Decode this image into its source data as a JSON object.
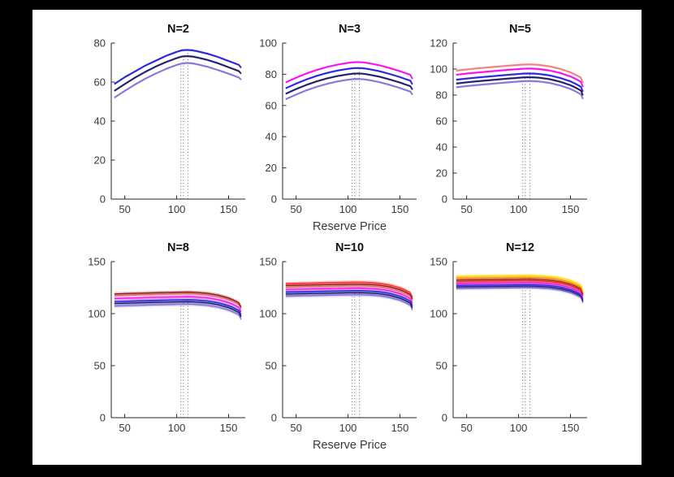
{
  "figure": {
    "background": "#000000",
    "canvas_background": "#ffffff",
    "axis_color": "#262626",
    "tick_label_color": "#3a3a3a",
    "title_color": "#111111",
    "vline_color": "#4a4a4a"
  },
  "chart_data": [
    {
      "type": "line",
      "title": "N=2",
      "xlabel": "",
      "ylabel": "",
      "xlim": [
        37,
        166
      ],
      "ylim": [
        0,
        80
      ],
      "xticks": [
        50,
        100,
        150
      ],
      "yticks": [
        0,
        20,
        40,
        60,
        80
      ],
      "grid": false,
      "legend": "none",
      "band_halfwidth": 0.6,
      "x": [
        40,
        50,
        60,
        70,
        80,
        90,
        100,
        105,
        110,
        115,
        120,
        130,
        140,
        150,
        155,
        160,
        162
      ],
      "vlines": [
        {
          "x": 104,
          "top": 69.8
        },
        {
          "x": 106.5,
          "top": 73.3
        },
        {
          "x": 111,
          "top": 76.5
        }
      ],
      "series": [
        {
          "name": "purple",
          "color": "#8673d9",
          "values": [
            52,
            55.5,
            58.8,
            61.8,
            64.4,
            66.8,
            68.8,
            69.5,
            69.8,
            69.6,
            69.1,
            67.8,
            66.1,
            64.3,
            63.3,
            62.3,
            61.2
          ]
        },
        {
          "name": "navy",
          "color": "#1c1c66",
          "values": [
            55.5,
            59,
            62.3,
            65.3,
            68,
            70.3,
            72.3,
            73.1,
            73.3,
            73.1,
            72.6,
            71.3,
            69.6,
            67.6,
            66.6,
            65.6,
            64.3
          ]
        },
        {
          "name": "blue",
          "color": "#2424dd",
          "values": [
            59,
            62.5,
            65.5,
            68.5,
            71,
            73.5,
            75.5,
            76.3,
            76.5,
            76.3,
            75.8,
            74.5,
            72.8,
            70.8,
            69.8,
            68.8,
            67.3
          ]
        }
      ]
    },
    {
      "type": "line",
      "title": "N=3",
      "xlabel": "Reserve Price",
      "ylabel": "",
      "xlim": [
        37,
        166
      ],
      "ylim": [
        0,
        100
      ],
      "xticks": [
        50,
        100,
        150
      ],
      "yticks": [
        0,
        20,
        40,
        60,
        80,
        100
      ],
      "grid": false,
      "legend": "none",
      "band_halfwidth": 0.7,
      "x": [
        40,
        50,
        60,
        70,
        80,
        90,
        100,
        105,
        110,
        115,
        120,
        130,
        140,
        150,
        155,
        160,
        162
      ],
      "vlines": [
        {
          "x": 104,
          "top": 77
        },
        {
          "x": 106.5,
          "top": 80.5
        },
        {
          "x": 111,
          "top": 84
        }
      ],
      "series": [
        {
          "name": "purple",
          "color": "#8673d9",
          "values": [
            64,
            67,
            69.7,
            72,
            73.9,
            75.4,
            76.5,
            76.9,
            77,
            76.8,
            76.3,
            75,
            73.2,
            71.2,
            70,
            68.9,
            66.9
          ]
        },
        {
          "name": "navy",
          "color": "#1c1c66",
          "values": [
            67.5,
            70.5,
            73.2,
            75.5,
            77.4,
            78.9,
            80,
            80.4,
            80.5,
            80.3,
            79.8,
            78.5,
            76.7,
            74.7,
            73.5,
            72.4,
            70.2
          ]
        },
        {
          "name": "blue",
          "color": "#2424dd",
          "values": [
            71,
            74,
            76.7,
            79,
            80.9,
            82.4,
            83.5,
            83.9,
            84,
            83.8,
            83.3,
            82,
            80.2,
            78.2,
            77,
            75.9,
            73.5
          ]
        },
        {
          "name": "magenta",
          "color": "#fb0cf0",
          "values": [
            74.8,
            77.8,
            80.5,
            82.8,
            84.7,
            86.2,
            87.3,
            87.7,
            87.8,
            87.6,
            87.1,
            85.8,
            84,
            82,
            80.8,
            79.7,
            77
          ]
        }
      ]
    },
    {
      "type": "line",
      "title": "N=5",
      "xlabel": "",
      "ylabel": "",
      "xlim": [
        37,
        166
      ],
      "ylim": [
        0,
        120
      ],
      "xticks": [
        50,
        100,
        150
      ],
      "yticks": [
        0,
        20,
        40,
        60,
        80,
        100,
        120
      ],
      "grid": false,
      "legend": "none",
      "band_halfwidth": 0.9,
      "x": [
        40,
        50,
        60,
        70,
        80,
        90,
        100,
        105,
        110,
        115,
        120,
        130,
        140,
        150,
        155,
        160,
        162
      ],
      "vlines": [
        {
          "x": 104,
          "top": 90.8
        },
        {
          "x": 106.5,
          "top": 93.7
        },
        {
          "x": 111,
          "top": 96.6
        }
      ],
      "series": [
        {
          "name": "purple",
          "color": "#8673d9",
          "values": [
            86,
            86.9,
            87.7,
            88.4,
            89.1,
            89.8,
            90.4,
            90.7,
            90.8,
            90.7,
            90.4,
            89.3,
            87.4,
            84.7,
            82.8,
            80.6,
            77
          ]
        },
        {
          "name": "navy",
          "color": "#1c1c66",
          "values": [
            88.9,
            89.8,
            90.6,
            91.3,
            92,
            92.7,
            93.3,
            93.6,
            93.7,
            93.6,
            93.3,
            92.2,
            90.3,
            87.6,
            85.7,
            83.5,
            79.8
          ]
        },
        {
          "name": "blue",
          "color": "#2424dd",
          "values": [
            91.8,
            92.7,
            93.5,
            94.2,
            94.9,
            95.6,
            96.2,
            96.5,
            96.6,
            96.5,
            96.2,
            95.1,
            93.2,
            90.5,
            88.6,
            86.4,
            82.6
          ]
        },
        {
          "name": "magenta",
          "color": "#fb0cf0",
          "values": [
            95.6,
            96.5,
            97.3,
            98,
            98.7,
            99.4,
            100,
            100.3,
            100.4,
            100.3,
            100,
            98.9,
            97,
            94.3,
            92.4,
            90.2,
            86.2
          ]
        },
        {
          "name": "salmon",
          "color": "#f08080",
          "values": [
            98.8,
            99.7,
            100.5,
            101.2,
            101.9,
            102.6,
            103.2,
            103.5,
            103.6,
            103.5,
            103.2,
            102.1,
            100.2,
            97.5,
            95.6,
            93.4,
            89.2
          ]
        }
      ]
    },
    {
      "type": "line",
      "title": "N=8",
      "xlabel": "",
      "ylabel": "",
      "xlim": [
        37,
        166
      ],
      "ylim": [
        0,
        150
      ],
      "xticks": [
        50,
        100,
        150
      ],
      "yticks": [
        0,
        50,
        100,
        150
      ],
      "grid": false,
      "legend": "none",
      "band_halfwidth": 1.7,
      "x": [
        40,
        50,
        60,
        70,
        80,
        90,
        100,
        105,
        110,
        115,
        120,
        130,
        140,
        150,
        155,
        160,
        162
      ],
      "vlines": [
        {
          "x": 104,
          "top": 109.1
        },
        {
          "x": 106.5,
          "top": 113.4
        },
        {
          "x": 111,
          "top": 120.7
        }
      ],
      "series": [
        {
          "name": "purple",
          "color": "#8673d9",
          "values": [
            107.3,
            107.6,
            107.9,
            108.2,
            108.5,
            108.7,
            108.9,
            109,
            109.1,
            109,
            108.7,
            107.9,
            106.2,
            103.4,
            101.3,
            98.7,
            94.5
          ]
        },
        {
          "name": "navy",
          "color": "#1c1c66",
          "values": [
            109.7,
            110,
            110.3,
            110.6,
            110.9,
            111.1,
            111.3,
            111.4,
            111.5,
            111.4,
            111.1,
            110.3,
            108.6,
            105.8,
            103.7,
            101.1,
            96.9
          ]
        },
        {
          "name": "blue",
          "color": "#2424dd",
          "values": [
            111.6,
            111.9,
            112.2,
            112.5,
            112.8,
            113,
            113.2,
            113.3,
            113.4,
            113.3,
            113,
            112.2,
            110.5,
            107.7,
            105.6,
            103,
            98.8
          ]
        },
        {
          "name": "magenta",
          "color": "#fb0cf0",
          "values": [
            114.5,
            114.8,
            115.1,
            115.4,
            115.7,
            115.9,
            116.1,
            116.2,
            116.3,
            116.2,
            115.9,
            115.1,
            113.4,
            110.6,
            108.5,
            105.9,
            101.7
          ]
        },
        {
          "name": "salmon",
          "color": "#f08080",
          "values": [
            117.2,
            117.5,
            117.8,
            118.1,
            118.4,
            118.6,
            118.8,
            118.9,
            119,
            118.9,
            118.6,
            117.8,
            116.1,
            113.3,
            111.2,
            108.6,
            104.4
          ]
        },
        {
          "name": "darkred",
          "color": "#8f1515",
          "values": [
            118.9,
            119.2,
            119.5,
            119.8,
            120.1,
            120.3,
            120.5,
            120.6,
            120.7,
            120.6,
            120.3,
            119.5,
            117.8,
            115,
            112.9,
            110.3,
            106.1
          ]
        }
      ]
    },
    {
      "type": "line",
      "title": "N=10",
      "xlabel": "Reserve Price",
      "ylabel": "",
      "xlim": [
        37,
        166
      ],
      "ylim": [
        0,
        150
      ],
      "xticks": [
        50,
        100,
        150
      ],
      "yticks": [
        0,
        50,
        100,
        150
      ],
      "grid": false,
      "legend": "none",
      "band_halfwidth": 1.7,
      "x": [
        40,
        50,
        60,
        70,
        80,
        90,
        100,
        105,
        110,
        115,
        120,
        130,
        140,
        150,
        155,
        160,
        162
      ],
      "vlines": [
        {
          "x": 104,
          "top": 118.1
        },
        {
          "x": 106.5,
          "top": 122.1
        },
        {
          "x": 111,
          "top": 130.2
        }
      ],
      "series": [
        {
          "name": "purple",
          "color": "#8673d9",
          "values": [
            116.8,
            117,
            117.2,
            117.4,
            117.6,
            117.8,
            118,
            118.1,
            118.1,
            118,
            117.8,
            117.1,
            115.5,
            112.8,
            110.7,
            108,
            103.5
          ]
        },
        {
          "name": "navy",
          "color": "#1c1c66",
          "values": [
            118.9,
            119.1,
            119.3,
            119.5,
            119.7,
            119.9,
            120.1,
            120.2,
            120.2,
            120.1,
            119.9,
            119.2,
            117.6,
            114.9,
            112.8,
            110.1,
            105.6
          ]
        },
        {
          "name": "blue",
          "color": "#2424dd",
          "values": [
            120.8,
            121,
            121.2,
            121.4,
            121.6,
            121.8,
            122,
            122.1,
            122.1,
            122,
            121.8,
            121.1,
            119.5,
            116.8,
            114.7,
            112,
            107.5
          ]
        },
        {
          "name": "magenta",
          "color": "#fb0cf0",
          "values": [
            123.3,
            123.5,
            123.7,
            123.9,
            124.1,
            124.3,
            124.5,
            124.6,
            124.6,
            124.5,
            124.3,
            123.6,
            122,
            119.3,
            117.2,
            114.5,
            110
          ]
        },
        {
          "name": "salmon",
          "color": "#f08080",
          "values": [
            125.3,
            125.5,
            125.7,
            125.9,
            126.1,
            126.3,
            126.5,
            126.6,
            126.6,
            126.5,
            126.3,
            125.6,
            124,
            121.3,
            119.2,
            116.5,
            112
          ]
        },
        {
          "name": "darkred",
          "color": "#8f1515",
          "values": [
            127.1,
            127.3,
            127.5,
            127.7,
            127.9,
            128.1,
            128.3,
            128.4,
            128.4,
            128.3,
            128.1,
            127.4,
            125.8,
            123.1,
            121,
            118.3,
            113.8
          ]
        },
        {
          "name": "red",
          "color": "#ff2a2a",
          "values": [
            128.9,
            129.1,
            129.3,
            129.5,
            129.7,
            129.9,
            130.1,
            130.2,
            130.2,
            130.1,
            129.9,
            129.2,
            127.6,
            124.9,
            122.8,
            120.1,
            115.6
          ]
        }
      ]
    },
    {
      "type": "line",
      "title": "N=12",
      "xlabel": "",
      "ylabel": "",
      "xlim": [
        37,
        166
      ],
      "ylim": [
        0,
        150
      ],
      "xticks": [
        50,
        100,
        150
      ],
      "yticks": [
        0,
        50,
        100,
        150
      ],
      "grid": false,
      "legend": "none",
      "band_halfwidth": 1.7,
      "x": [
        40,
        50,
        60,
        70,
        80,
        90,
        100,
        105,
        110,
        115,
        120,
        130,
        140,
        150,
        155,
        160,
        162
      ],
      "vlines": [
        {
          "x": 104,
          "top": 125
        },
        {
          "x": 106.5,
          "top": 128
        },
        {
          "x": 111,
          "top": 136.6
        }
      ],
      "series": [
        {
          "name": "purple",
          "color": "#8673d9",
          "values": [
            124.2,
            124.4,
            124.5,
            124.6,
            124.7,
            124.8,
            124.9,
            125,
            125,
            124.9,
            124.7,
            124.1,
            122.7,
            120.2,
            118.2,
            115.6,
            110.5
          ]
        },
        {
          "name": "navy",
          "color": "#1c1c66",
          "values": [
            125.7,
            125.9,
            126,
            126.1,
            126.2,
            126.3,
            126.4,
            126.5,
            126.5,
            126.4,
            126.2,
            125.6,
            124.2,
            121.7,
            119.7,
            117.1,
            112
          ]
        },
        {
          "name": "blue",
          "color": "#2424dd",
          "values": [
            127.2,
            127.4,
            127.5,
            127.6,
            127.7,
            127.8,
            127.9,
            128,
            128,
            127.9,
            127.7,
            127.1,
            125.7,
            123.2,
            121.2,
            118.6,
            113.5
          ]
        },
        {
          "name": "magenta",
          "color": "#fb0cf0",
          "values": [
            129,
            129.2,
            129.3,
            129.4,
            129.5,
            129.6,
            129.7,
            129.8,
            129.8,
            129.7,
            129.5,
            128.9,
            127.5,
            125,
            123,
            120.4,
            115.3
          ]
        },
        {
          "name": "red",
          "color": "#ff2a2a",
          "values": [
            130.8,
            131,
            131.1,
            131.2,
            131.3,
            131.4,
            131.5,
            131.6,
            131.6,
            131.5,
            131.3,
            130.7,
            129.3,
            126.8,
            124.8,
            122.2,
            117.1
          ]
        },
        {
          "name": "darkred",
          "color": "#8f1515",
          "values": [
            132.4,
            132.6,
            132.7,
            132.8,
            132.9,
            133,
            133.1,
            133.2,
            133.2,
            133.1,
            132.9,
            132.3,
            130.9,
            128.4,
            126.4,
            123.8,
            118.7
          ]
        },
        {
          "name": "orange",
          "color": "#ff7d00",
          "values": [
            134.1,
            134.3,
            134.4,
            134.5,
            134.6,
            134.7,
            134.8,
            134.9,
            134.9,
            134.8,
            134.6,
            134,
            132.6,
            130.1,
            128.1,
            125.5,
            120.4
          ]
        },
        {
          "name": "yellow",
          "color": "#ffd900",
          "values": [
            135.8,
            136,
            136.1,
            136.2,
            136.3,
            136.4,
            136.5,
            136.6,
            136.6,
            136.5,
            136.3,
            135.7,
            134.3,
            131.8,
            129.8,
            127.2,
            122.1
          ]
        }
      ]
    }
  ]
}
